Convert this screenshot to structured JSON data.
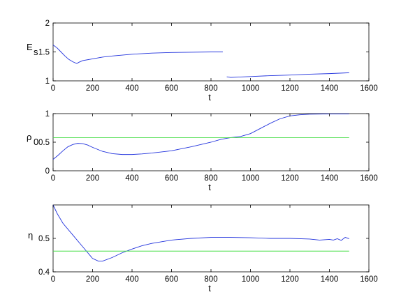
{
  "chart_data": [
    {
      "type": "line",
      "xlabel": "t",
      "ylabel": "E",
      "ylabel_sub": "s",
      "xlim": [
        0,
        1600
      ],
      "ylim": [
        1,
        2
      ],
      "xticks": [
        "0",
        "200",
        "400",
        "600",
        "800",
        "1000",
        "1200",
        "1400",
        "1600"
      ],
      "yticks": [
        "1",
        "1.5",
        "2"
      ],
      "grid": false,
      "series": [
        {
          "color": "#2233dd",
          "x": [
            0,
            20,
            40,
            60,
            80,
            100,
            120,
            130,
            150,
            200,
            250,
            300,
            400,
            500,
            600,
            700,
            800,
            860
          ],
          "y": [
            1.62,
            1.57,
            1.5,
            1.43,
            1.37,
            1.33,
            1.3,
            1.32,
            1.35,
            1.38,
            1.41,
            1.43,
            1.46,
            1.48,
            1.49,
            1.495,
            1.5,
            1.5
          ]
        },
        {
          "color": "#2233dd",
          "x": [
            880,
            900,
            1000,
            1100,
            1200,
            1300,
            1400,
            1500
          ],
          "y": [
            1.07,
            1.06,
            1.075,
            1.09,
            1.1,
            1.115,
            1.125,
            1.14
          ]
        }
      ]
    },
    {
      "type": "line",
      "xlabel": "t",
      "ylabel": "ρ",
      "ylabel_sub": "0",
      "xlim": [
        0,
        1600
      ],
      "ylim": [
        0,
        1
      ],
      "xticks": [
        "0",
        "200",
        "400",
        "600",
        "800",
        "1000",
        "1200",
        "1400",
        "1600"
      ],
      "yticks": [
        "0",
        "0.5",
        "1"
      ],
      "grid": false,
      "series": [
        {
          "color": "#2233dd",
          "x": [
            0,
            25,
            50,
            75,
            100,
            125,
            150,
            175,
            200,
            250,
            300,
            350,
            400,
            450,
            500,
            600,
            700,
            800,
            850,
            900,
            950,
            1000,
            1050,
            1100,
            1150,
            1200,
            1250,
            1300,
            1400,
            1500
          ],
          "y": [
            0.2,
            0.27,
            0.35,
            0.42,
            0.46,
            0.48,
            0.475,
            0.45,
            0.41,
            0.34,
            0.3,
            0.285,
            0.285,
            0.295,
            0.31,
            0.35,
            0.42,
            0.5,
            0.55,
            0.58,
            0.6,
            0.65,
            0.74,
            0.83,
            0.91,
            0.96,
            0.98,
            0.99,
            0.995,
            0.995
          ]
        },
        {
          "color": "#44dd44",
          "x": [
            0,
            1500
          ],
          "y": [
            0.58,
            0.58
          ]
        }
      ]
    },
    {
      "type": "line",
      "xlabel": "t",
      "ylabel": "η",
      "ylabel_sub": "",
      "xlim": [
        0,
        1600
      ],
      "ylim": [
        0.4,
        0.6
      ],
      "xticks": [
        "0",
        "200",
        "400",
        "600",
        "800",
        "1000",
        "1200",
        "1400",
        "1600"
      ],
      "yticks": [
        "0.4",
        "0.5"
      ],
      "grid": false,
      "series": [
        {
          "color": "#2233dd",
          "x": [
            0,
            20,
            50,
            100,
            150,
            200,
            230,
            250,
            300,
            350,
            400,
            450,
            500,
            600,
            700,
            800,
            900,
            1000,
            1100,
            1200,
            1300,
            1350,
            1400,
            1420,
            1440,
            1460,
            1480,
            1500
          ],
          "y": [
            0.6,
            0.575,
            0.545,
            0.51,
            0.475,
            0.44,
            0.432,
            0.432,
            0.443,
            0.457,
            0.468,
            0.478,
            0.485,
            0.495,
            0.5,
            0.503,
            0.503,
            0.502,
            0.5,
            0.5,
            0.498,
            0.495,
            0.497,
            0.495,
            0.499,
            0.494,
            0.503,
            0.499
          ]
        },
        {
          "color": "#44dd44",
          "x": [
            0,
            1500
          ],
          "y": [
            0.462,
            0.462
          ]
        }
      ]
    }
  ]
}
